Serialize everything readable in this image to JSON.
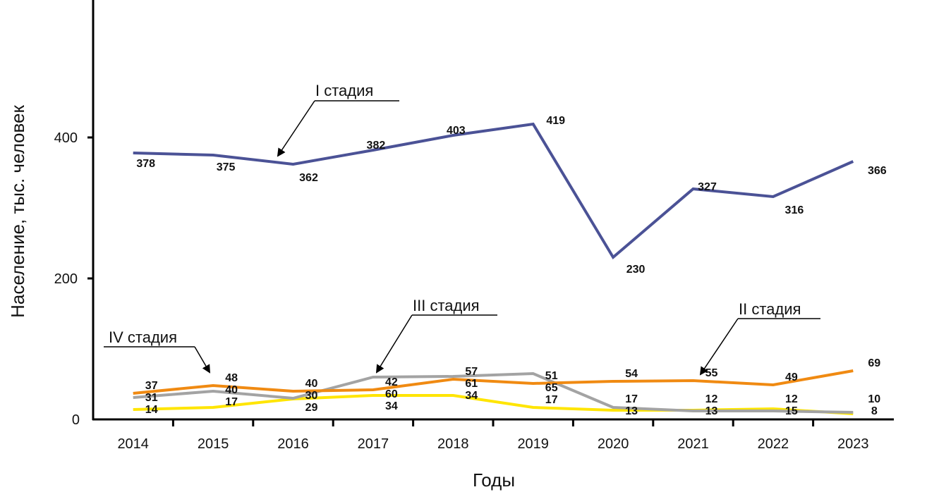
{
  "chart_data": {
    "type": "line",
    "title": "",
    "xlabel": "Годы",
    "ylabel": "Население, тыс. человек",
    "ylim": [
      0,
      595
    ],
    "yticks": [
      0,
      200,
      400
    ],
    "grid": false,
    "legend": "none (inline annotations)",
    "categories": [
      "2014",
      "2015",
      "2016",
      "2017",
      "2018",
      "2019",
      "2020",
      "2021",
      "2022",
      "2023"
    ],
    "series": [
      {
        "name": "I стадия",
        "color": "#4b5296",
        "values": [
          378,
          375,
          362,
          382,
          403,
          419,
          230,
          327,
          316,
          366
        ]
      },
      {
        "name": "II стадия",
        "color": "#f08a12",
        "values": [
          37,
          48,
          40,
          42,
          57,
          51,
          54,
          55,
          49,
          69
        ]
      },
      {
        "name": "III стадия",
        "color": "#a3a3a3",
        "values": [
          31,
          40,
          30,
          60,
          61,
          65,
          17,
          12,
          12,
          10
        ]
      },
      {
        "name": "IV стадия",
        "color": "#ffe500",
        "values": [
          14,
          17,
          29,
          34,
          34,
          17,
          13,
          13,
          15,
          8
        ]
      }
    ],
    "annotations": [
      {
        "text": "I стадия",
        "points_to_series": "I стадия",
        "near_category": "2016"
      },
      {
        "text": "II стадия",
        "points_to_series": "II стадия",
        "near_category": "2021"
      },
      {
        "text": "III стадия",
        "points_to_series": "III стадия",
        "near_category": "2017"
      },
      {
        "text": "IV стадия",
        "points_to_series": "IV стадия",
        "near_category": "2015"
      }
    ]
  }
}
